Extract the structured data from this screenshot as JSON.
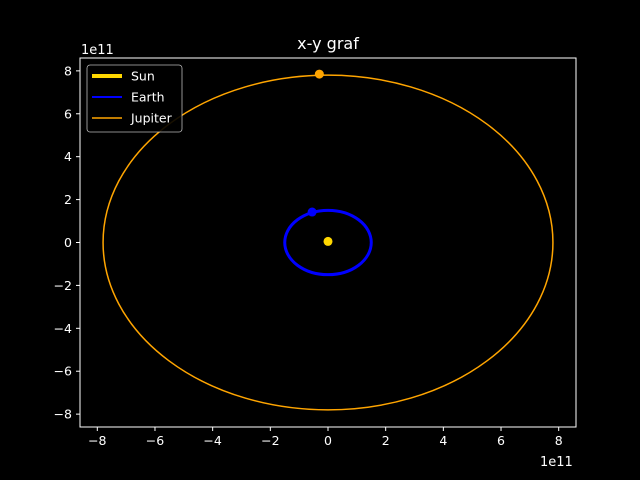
{
  "chart_data": {
    "type": "line",
    "title": "x-y graf",
    "xlabel": "",
    "ylabel": "",
    "x_offset_label": "1e11",
    "y_offset_label": "1e11",
    "xlim": [
      -8.6,
      8.6
    ],
    "ylim": [
      -8.6,
      8.6
    ],
    "x_ticks": [
      -8,
      -6,
      -4,
      -2,
      0,
      2,
      4,
      6,
      8
    ],
    "y_ticks": [
      -8,
      -6,
      -4,
      -2,
      0,
      2,
      4,
      6,
      8
    ],
    "grid": false,
    "legend_position": "top-left",
    "background": "#000000",
    "series": [
      {
        "name": "Sun",
        "color": "#ffd700",
        "orbit_radius": 0,
        "marker": [
          0,
          0.05
        ]
      },
      {
        "name": "Earth",
        "color": "#0000ff",
        "orbit_radius": 1.5,
        "marker": [
          -0.55,
          1.42
        ]
      },
      {
        "name": "Jupiter",
        "color": "#ffa500",
        "orbit_radius": 7.8,
        "marker": [
          -0.3,
          7.85
        ]
      }
    ]
  }
}
